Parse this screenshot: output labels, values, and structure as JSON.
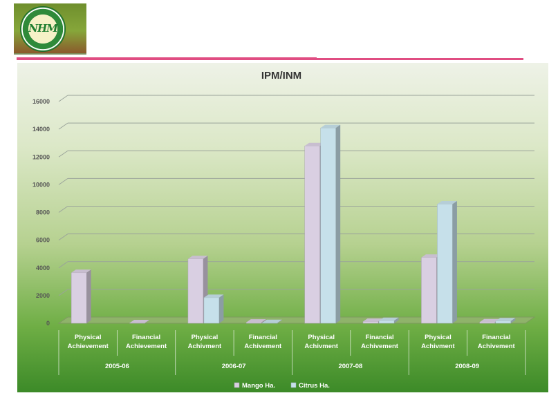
{
  "chart_data": {
    "type": "bar",
    "title": "IPM/INM",
    "ylim": [
      0,
      16000
    ],
    "yticks": [
      0,
      2000,
      4000,
      6000,
      8000,
      10000,
      12000,
      14000,
      16000
    ],
    "categories": [
      {
        "label1": "Physical",
        "label2": "Achievement",
        "group": "2005-06"
      },
      {
        "label1": "Financial",
        "label2": "Achievement",
        "group": "2005-06"
      },
      {
        "label1": "Physical",
        "label2": "Achivment",
        "group": "2006-07"
      },
      {
        "label1": "Financial",
        "label2": "Achivement",
        "group": "2006-07"
      },
      {
        "label1": "Physical",
        "label2": "Achivment",
        "group": "2007-08"
      },
      {
        "label1": "Financial",
        "label2": "Achivement",
        "group": "2007-08"
      },
      {
        "label1": "Physical",
        "label2": "Achivment",
        "group": "2008-09"
      },
      {
        "label1": "Financial",
        "label2": "Achivement",
        "group": "2008-09"
      }
    ],
    "groups": [
      "2005-06",
      "2006-07",
      "2007-08",
      "2008-09"
    ],
    "series": [
      {
        "name": "Mango Ha.",
        "color": "#d9cfe2",
        "values": [
          3650,
          25,
          4650,
          70,
          12800,
          125,
          4750,
          90
        ]
      },
      {
        "name": "Citrus Ha.",
        "color": "#c6e0ea",
        "values": [
          0,
          0,
          1850,
          35,
          14100,
          190,
          8600,
          160
        ]
      }
    ],
    "legend_position": "bottom",
    "grid": true
  }
}
